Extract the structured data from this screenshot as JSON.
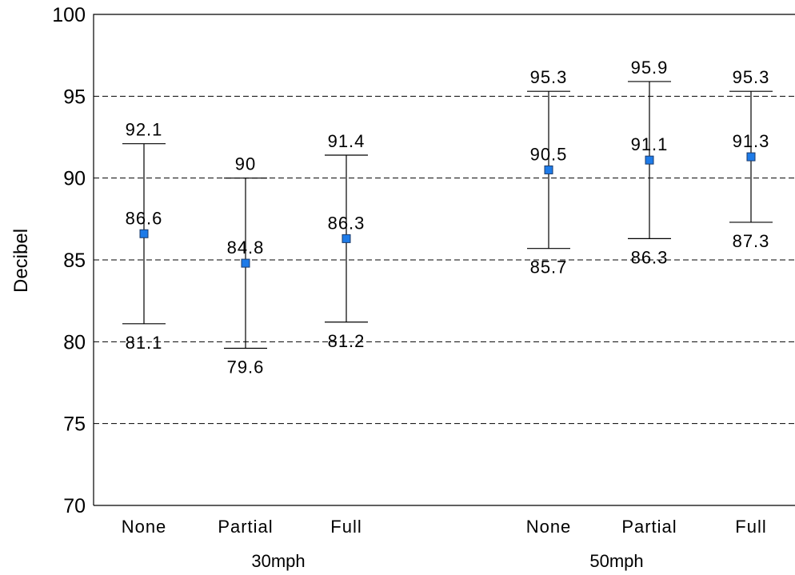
{
  "chart_data": {
    "type": "errorbar",
    "title": "",
    "xlabel": "",
    "ylabel": "Decibel",
    "ylim": [
      70,
      100
    ],
    "yticks": [
      70,
      75,
      80,
      85,
      90,
      95,
      100
    ],
    "grid": "horizontal-dashed",
    "marker_color": "#1e7be8",
    "groups": [
      {
        "label": "30mph",
        "categories": [
          {
            "label": "None",
            "mean": 86.6,
            "upper": 92.1,
            "lower": 81.1,
            "mean_label": "86.6",
            "upper_label": "92.1",
            "lower_label": "81.1"
          },
          {
            "label": "Partial",
            "mean": 84.8,
            "upper": 90.0,
            "lower": 79.6,
            "mean_label": "84.8",
            "upper_label": "90",
            "lower_label": "79.6"
          },
          {
            "label": "Full",
            "mean": 86.3,
            "upper": 91.4,
            "lower": 81.2,
            "mean_label": "86.3",
            "upper_label": "91.4",
            "lower_label": "81.2"
          }
        ]
      },
      {
        "label": "50mph",
        "categories": [
          {
            "label": "None",
            "mean": 90.5,
            "upper": 95.3,
            "lower": 85.7,
            "mean_label": "90.5",
            "upper_label": "95.3",
            "lower_label": "85.7"
          },
          {
            "label": "Partial",
            "mean": 91.1,
            "upper": 95.9,
            "lower": 86.3,
            "mean_label": "91.1",
            "upper_label": "95.9",
            "lower_label": "86.3"
          },
          {
            "label": "Full",
            "mean": 91.3,
            "upper": 95.3,
            "lower": 87.3,
            "mean_label": "91.3",
            "upper_label": "95.3",
            "lower_label": "87.3"
          }
        ]
      }
    ]
  }
}
